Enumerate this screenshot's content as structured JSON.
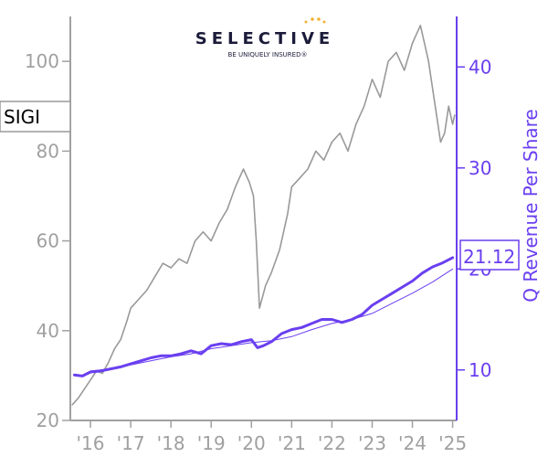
{
  "logo": {
    "name": "SELECTIVE",
    "tagline": "BE UNIQUELY INSURED®"
  },
  "colors": {
    "price": "#999999",
    "revenue": "#6a3ff0",
    "axis_left": "#a0a0a0",
    "axis_right": "#6a3ff0"
  },
  "chart_data": {
    "type": "line",
    "ticker_label": "SIGI",
    "last_value_label": "21.12",
    "ylabel_right": "Q Revenue Per Share",
    "x_ticks": [
      "'16",
      "'17",
      "'18",
      "'19",
      "'20",
      "'21",
      "'22",
      "'23",
      "'24",
      "'25"
    ],
    "x_tick_values": [
      2016,
      2017,
      2018,
      2019,
      2020,
      2021,
      2022,
      2023,
      2024,
      2025
    ],
    "xlim": [
      2015.5,
      2025.1
    ],
    "y_left": {
      "ticks": [
        20,
        40,
        60,
        80,
        100
      ],
      "lim": [
        20,
        110
      ]
    },
    "y_right": {
      "ticks": [
        10,
        20,
        30,
        40
      ],
      "lim": [
        5,
        45
      ]
    },
    "series": [
      {
        "axis": "left",
        "style": "price",
        "x": [
          2015.55,
          2015.7,
          2015.85,
          2016.0,
          2016.15,
          2016.3,
          2016.45,
          2016.6,
          2016.75,
          2016.9,
          2017.0,
          2017.2,
          2017.4,
          2017.6,
          2017.8,
          2018.0,
          2018.2,
          2018.4,
          2018.6,
          2018.8,
          2019.0,
          2019.2,
          2019.4,
          2019.6,
          2019.8,
          2019.95,
          2020.05,
          2020.12,
          2020.2,
          2020.35,
          2020.5,
          2020.7,
          2020.9,
          2021.0,
          2021.2,
          2021.4,
          2021.6,
          2021.8,
          2022.0,
          2022.2,
          2022.4,
          2022.6,
          2022.8,
          2023.0,
          2023.2,
          2023.4,
          2023.6,
          2023.8,
          2024.0,
          2024.1,
          2024.2,
          2024.3,
          2024.4,
          2024.5,
          2024.6,
          2024.7,
          2024.8,
          2024.9,
          2025.0,
          2025.05
        ],
        "values": [
          23.5,
          25,
          27,
          29,
          31,
          30.5,
          33,
          36,
          38,
          42,
          45,
          47,
          49,
          52,
          55,
          54,
          56,
          55,
          60,
          62,
          60,
          64,
          67,
          72,
          76,
          73,
          70,
          60,
          45,
          50,
          53,
          58,
          66,
          72,
          74,
          76,
          80,
          78,
          82,
          84,
          80,
          86,
          90,
          96,
          92,
          100,
          102,
          98,
          104,
          106,
          108,
          104,
          100,
          94,
          88,
          82,
          84,
          90,
          86,
          88
        ]
      },
      {
        "axis": "right",
        "style": "revenue_bold",
        "x": [
          2015.6,
          2015.8,
          2016.0,
          2016.25,
          2016.5,
          2016.75,
          2017.0,
          2017.25,
          2017.5,
          2017.75,
          2018.0,
          2018.25,
          2018.5,
          2018.75,
          2019.0,
          2019.25,
          2019.5,
          2019.75,
          2020.0,
          2020.15,
          2020.3,
          2020.5,
          2020.75,
          2021.0,
          2021.25,
          2021.5,
          2021.75,
          2022.0,
          2022.25,
          2022.5,
          2022.75,
          2023.0,
          2023.25,
          2023.5,
          2023.75,
          2024.0,
          2024.25,
          2024.5,
          2024.75,
          2025.0
        ],
        "values": [
          9.5,
          9.4,
          9.8,
          9.9,
          10.1,
          10.3,
          10.6,
          10.9,
          11.2,
          11.4,
          11.4,
          11.6,
          11.9,
          11.6,
          12.4,
          12.6,
          12.5,
          12.8,
          13.0,
          12.2,
          12.4,
          12.8,
          13.6,
          14.0,
          14.2,
          14.6,
          15.0,
          15.0,
          14.7,
          15.0,
          15.5,
          16.4,
          17.0,
          17.6,
          18.2,
          18.8,
          19.6,
          20.2,
          20.6,
          21.12
        ]
      },
      {
        "axis": "right",
        "style": "revenue_thin",
        "x": [
          2016.0,
          2016.5,
          2017.0,
          2017.5,
          2018.0,
          2018.5,
          2019.0,
          2019.5,
          2020.0,
          2020.5,
          2021.0,
          2021.5,
          2022.0,
          2022.5,
          2023.0,
          2023.5,
          2024.0,
          2024.5,
          2025.0
        ],
        "values": [
          9.9,
          10.1,
          10.5,
          10.9,
          11.3,
          11.6,
          12.1,
          12.4,
          12.7,
          12.9,
          13.3,
          14.0,
          14.6,
          15.0,
          15.6,
          16.6,
          17.6,
          18.7,
          20.0
        ]
      }
    ]
  }
}
